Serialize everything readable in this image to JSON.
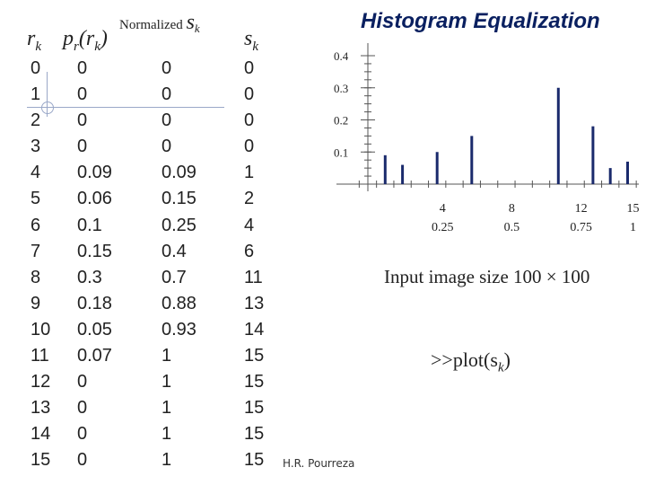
{
  "slide": {
    "title": "Histogram Equalization",
    "author": "H.R. Pourreza",
    "input_note": "Input image size 100 × 100",
    "command": ">>plot(s",
    "command_sub": "k",
    "command_end": ")"
  },
  "table": {
    "headers": {
      "rk_main": "r",
      "rk_sub": "k",
      "pr_main": "p",
      "pr_sub": "r",
      "pr_mid": "(r",
      "pr_sub2": "k",
      "pr_end": ")",
      "norm_label": "Normalized ",
      "norm_s": "s",
      "norm_sub": "k",
      "sk_main": "s",
      "sk_sub": "k"
    },
    "rk": [
      "0",
      "1",
      "2",
      "3",
      "4",
      "5",
      "6",
      "7",
      "8",
      "9",
      "10",
      "11",
      "12",
      "13",
      "14",
      "15"
    ],
    "pr": [
      "0",
      "0",
      "0",
      "0",
      "0.09",
      "0.06",
      "0.1",
      "0.15",
      "0.3",
      "0.18",
      "0.05",
      "0.07",
      "0",
      "0",
      "0",
      "0"
    ],
    "normalized_sk": [
      "0",
      "0",
      "0",
      "0",
      "0.09",
      "0.15",
      "0.25",
      "0.4",
      "0.7",
      "0.88",
      "0.93",
      "1",
      "1",
      "1",
      "1",
      "1"
    ],
    "sk": [
      "0",
      "0",
      "0",
      "0",
      "1",
      "2",
      "4",
      "6",
      "11",
      "13",
      "14",
      "15",
      "15",
      "15",
      "15",
      "15"
    ]
  },
  "chart_data": {
    "type": "bar",
    "title": "",
    "xlabel": "",
    "ylabel": "",
    "x_ticks": [
      {
        "x": 4,
        "label_top": "4",
        "label_bottom": "0.25"
      },
      {
        "x": 8,
        "label_top": "8",
        "label_bottom": "0.5"
      },
      {
        "x": 12,
        "label_top": "12",
        "label_bottom": "0.75"
      },
      {
        "x": 15,
        "label_top": "15",
        "label_bottom": "1"
      }
    ],
    "y_ticks": [
      "0.1",
      "0.2",
      "0.3",
      "0.4"
    ],
    "x": [
      1,
      2,
      4,
      6,
      11,
      13,
      14,
      15
    ],
    "values": [
      0.09,
      0.06,
      0.1,
      0.15,
      0.3,
      0.18,
      0.05,
      0.07
    ],
    "xlim": [
      0,
      16
    ],
    "ylim": [
      0,
      0.4
    ],
    "color": "#1a2a6c"
  }
}
